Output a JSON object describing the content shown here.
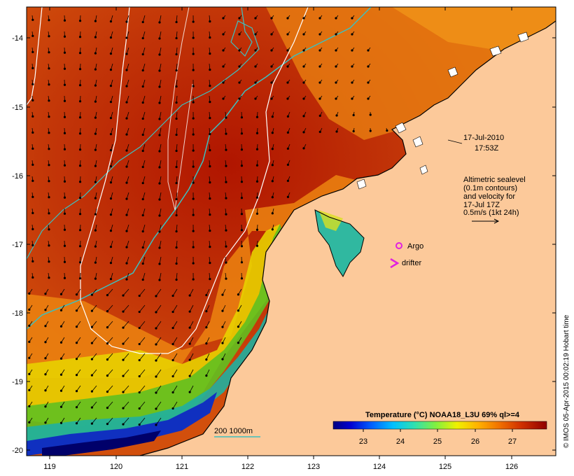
{
  "map": {
    "timestamp_date": "17-Jul-2010",
    "timestamp_time": "17:53Z",
    "legend_lines": [
      "Altimetric sealevel",
      "(0.1m contours)",
      "and velocity for",
      "17-Jul 17Z",
      "0.5m/s (1kt 24h)"
    ],
    "argo_label": "Argo",
    "drifter_label": "drifter",
    "depth_label": "200  1000m",
    "colorbar_title": "Temperature (°C) NOAA18_L3U 69% ql>=4",
    "colorbar_ticks": [
      "23",
      "24",
      "25",
      "26",
      "27"
    ],
    "credit": "© IMOS 05-Apr-2015 00:02:19 Hobart time",
    "lon_ticks": [
      "119",
      "120",
      "121",
      "122",
      "123",
      "124",
      "125",
      "126"
    ],
    "lat_ticks": [
      "-14",
      "-15",
      "-16",
      "-17",
      "-18",
      "-19",
      "-20"
    ],
    "colors": {
      "land": "#fcc99a",
      "sst_warm": "#c43a07",
      "sst_hot": "#b11800",
      "sst_mid": "#ee8a10",
      "contour_sealevel": "#ffffff",
      "contour_depth": "#3cc0c0",
      "argo": "#e020e0"
    }
  }
}
